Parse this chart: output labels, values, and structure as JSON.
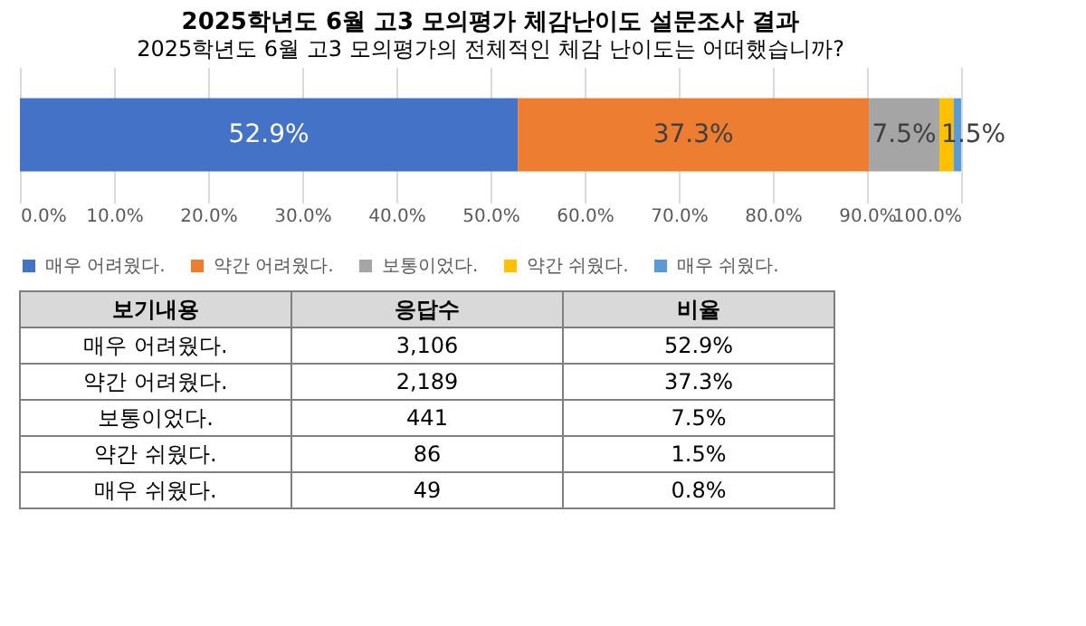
{
  "chart_data": [
    {
      "type": "bar",
      "orientation": "horizontal",
      "stacked": true,
      "title": "2025학년도 6월 고3 모의평가 체감난이도 설문조사 결과",
      "subtitle": "2025학년도 6월 고3 모의평가의 전체적인 체감 난이도는 어떠했습니까?",
      "categories": [
        null
      ],
      "series": [
        {
          "name": "매우 어려웠다.",
          "color": "#4472c4",
          "values": [
            52.9
          ],
          "value_labels": [
            "52.9%"
          ]
        },
        {
          "name": "약간 어려웠다.",
          "color": "#ed7d31",
          "values": [
            37.3
          ],
          "value_labels": [
            "37.3%"
          ]
        },
        {
          "name": "보통이었다.",
          "color": "#a5a5a5",
          "values": [
            7.5
          ],
          "value_labels": [
            "7.5%"
          ]
        },
        {
          "name": "약간 쉬웠다.",
          "color": "#ffc000",
          "values": [
            1.5
          ],
          "value_labels": [
            "1.5%"
          ]
        },
        {
          "name": "매우 쉬웠다.",
          "color": "#5b9bd5",
          "values": [
            0.8
          ],
          "value_labels": [
            null
          ]
        }
      ],
      "xlim": [
        0,
        100
      ],
      "xticks": [
        {
          "value": 0,
          "label": "0.0%"
        },
        {
          "value": 10,
          "label": "10.0%"
        },
        {
          "value": 20,
          "label": "20.0%"
        },
        {
          "value": 30,
          "label": "30.0%"
        },
        {
          "value": 40,
          "label": "40.0%"
        },
        {
          "value": 50,
          "label": "50.0%"
        },
        {
          "value": 60,
          "label": "60.0%"
        },
        {
          "value": 70,
          "label": "70.0%"
        },
        {
          "value": 80,
          "label": "80.0%"
        },
        {
          "value": 90,
          "label": "90.0%"
        },
        {
          "value": 100,
          "label": "100.0%"
        }
      ],
      "grid": "x",
      "legend": "bottom"
    },
    {
      "type": "other",
      "annotations": [
        "보기내용",
        "응답수",
        "비율",
        "매우 어려웠다.",
        "3,106",
        "52.9%",
        "약간 어려웠다.",
        "2,189",
        "37.3%",
        "보통이었다.",
        "441",
        "7.5%",
        "약간 쉬웠다.",
        "86",
        "1.5%",
        "매우 쉬웠다.",
        "49",
        "0.8%"
      ]
    }
  ]
}
